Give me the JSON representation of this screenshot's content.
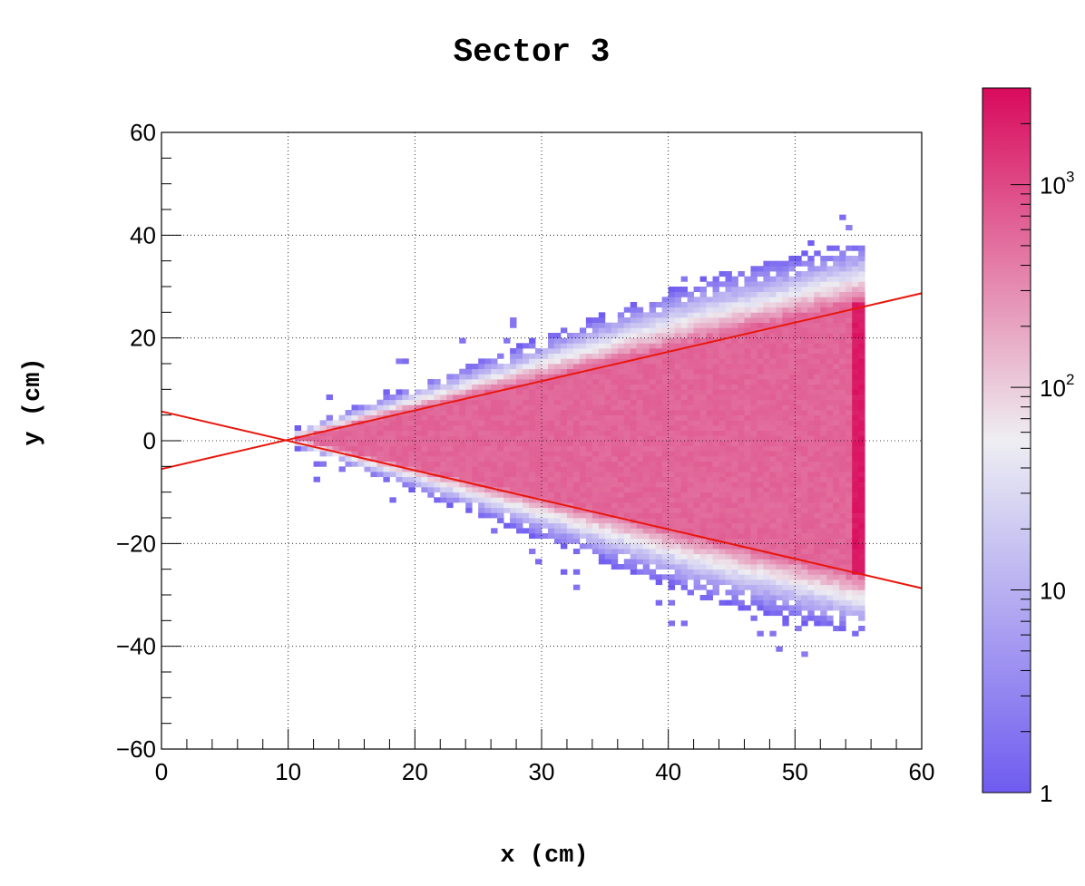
{
  "chart_data": {
    "type": "heatmap",
    "title": "Sector 3",
    "xlabel": "x (cm)",
    "ylabel": "y (cm)",
    "xlim": [
      0,
      60
    ],
    "ylim": [
      -60,
      60
    ],
    "x_ticks": [
      0,
      10,
      20,
      30,
      40,
      50,
      60
    ],
    "y_ticks": [
      -60,
      -40,
      -20,
      0,
      20,
      40,
      60
    ],
    "x_tick_labels": [
      "0",
      "10",
      "20",
      "30",
      "40",
      "50",
      "60"
    ],
    "y_tick_labels": [
      "−60",
      "−40",
      "−20",
      "0",
      "20",
      "40",
      "60"
    ],
    "grid": true,
    "color_scale": {
      "type": "log",
      "min": 1,
      "max": 3000,
      "labels": [
        {
          "value": 1,
          "base": "1",
          "exp": ""
        },
        {
          "value": 10,
          "base": "10",
          "exp": ""
        },
        {
          "value": 100,
          "base": "10",
          "exp": "2"
        },
        {
          "value": 1000,
          "base": "10",
          "exp": "3"
        }
      ],
      "colors": [
        "#6f5cf0",
        "#eeeef2",
        "#d90a5c"
      ]
    },
    "distribution": {
      "apex_x": 10.5,
      "x_max": 55.5,
      "core_half_angle_slope": 0.6,
      "core_density": 600,
      "edge_peak_density": 2500,
      "halo_extent_cm": 12
    },
    "lines": [
      {
        "name": "",
        "x": [
          0,
          60
        ],
        "y": [
          -5.5,
          28.7
        ],
        "color": "#e8160c"
      },
      {
        "name": "",
        "x": [
          0,
          60
        ],
        "y": [
          5.7,
          -28.7
        ],
        "color": "#e8160c"
      }
    ]
  }
}
